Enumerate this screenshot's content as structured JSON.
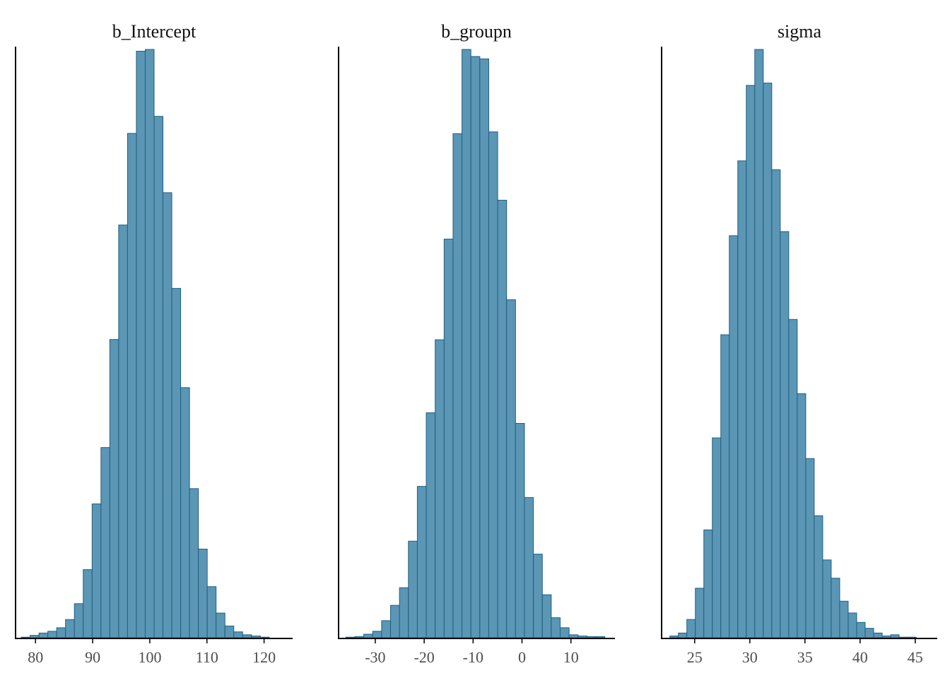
{
  "colors": {
    "bar_fill": "#5b96b5",
    "bar_stroke": "#1f5f80"
  },
  "chart_data": [
    {
      "type": "bar",
      "title": "b_Intercept",
      "xlabel": "",
      "ylabel": "",
      "xlim": [
        76.5,
        125
      ],
      "ticks": [
        80,
        90,
        100,
        110,
        120
      ],
      "tick_labels": [
        "80",
        "90",
        "100",
        "110",
        "120"
      ],
      "bin_start": 77.5,
      "bin_width": 1.55,
      "counts": [
        0.1,
        0.4,
        0.8,
        1.1,
        1.7,
        3.1,
        5.8,
        11.6,
        22.8,
        32.4,
        50.8,
        70.3,
        85.9,
        99.9,
        100.2,
        88.8,
        75.8,
        59.5,
        42.6,
        25.4,
        15.1,
        8.7,
        4.2,
        2.0,
        1.0,
        0.5,
        0.3,
        0.1
      ]
    },
    {
      "type": "bar",
      "title": "b_groupn",
      "xlabel": "",
      "ylabel": "",
      "xlim": [
        -37.5,
        19
      ],
      "ticks": [
        -30,
        -20,
        -10,
        0,
        10
      ],
      "tick_labels": [
        "-30",
        "-20",
        "-10",
        "0",
        "10"
      ],
      "bin_start": -36.0,
      "bin_width": 1.825,
      "counts": [
        0.1,
        0.2,
        0.6,
        1.1,
        2.9,
        5.5,
        8.5,
        16.4,
        25.7,
        38.2,
        50.6,
        67.7,
        85.6,
        99.9,
        98.7,
        98.3,
        85.9,
        74.3,
        57.4,
        36.4,
        23.8,
        14.2,
        7.3,
        3.4,
        1.7,
        0.5,
        0.3,
        0.2,
        0.2
      ]
    },
    {
      "type": "bar",
      "title": "sigma",
      "xlabel": "",
      "ylabel": "",
      "xlim": [
        22,
        47
      ],
      "ticks": [
        25,
        30,
        35,
        40,
        45
      ],
      "tick_labels": [
        "25",
        "30",
        "35",
        "40",
        "45"
      ],
      "bin_start": 22.75,
      "bin_width": 0.77,
      "counts": [
        0.3,
        0.8,
        3.1,
        8.4,
        18.3,
        33.9,
        51.4,
        68.2,
        80.9,
        93.7,
        99.8,
        94.1,
        79.4,
        68.9,
        54.0,
        41.4,
        30.4,
        20.7,
        13.2,
        10.1,
        6.2,
        4.2,
        2.6,
        1.6,
        0.8,
        0.3,
        0.5,
        0.1,
        0.1
      ]
    }
  ]
}
